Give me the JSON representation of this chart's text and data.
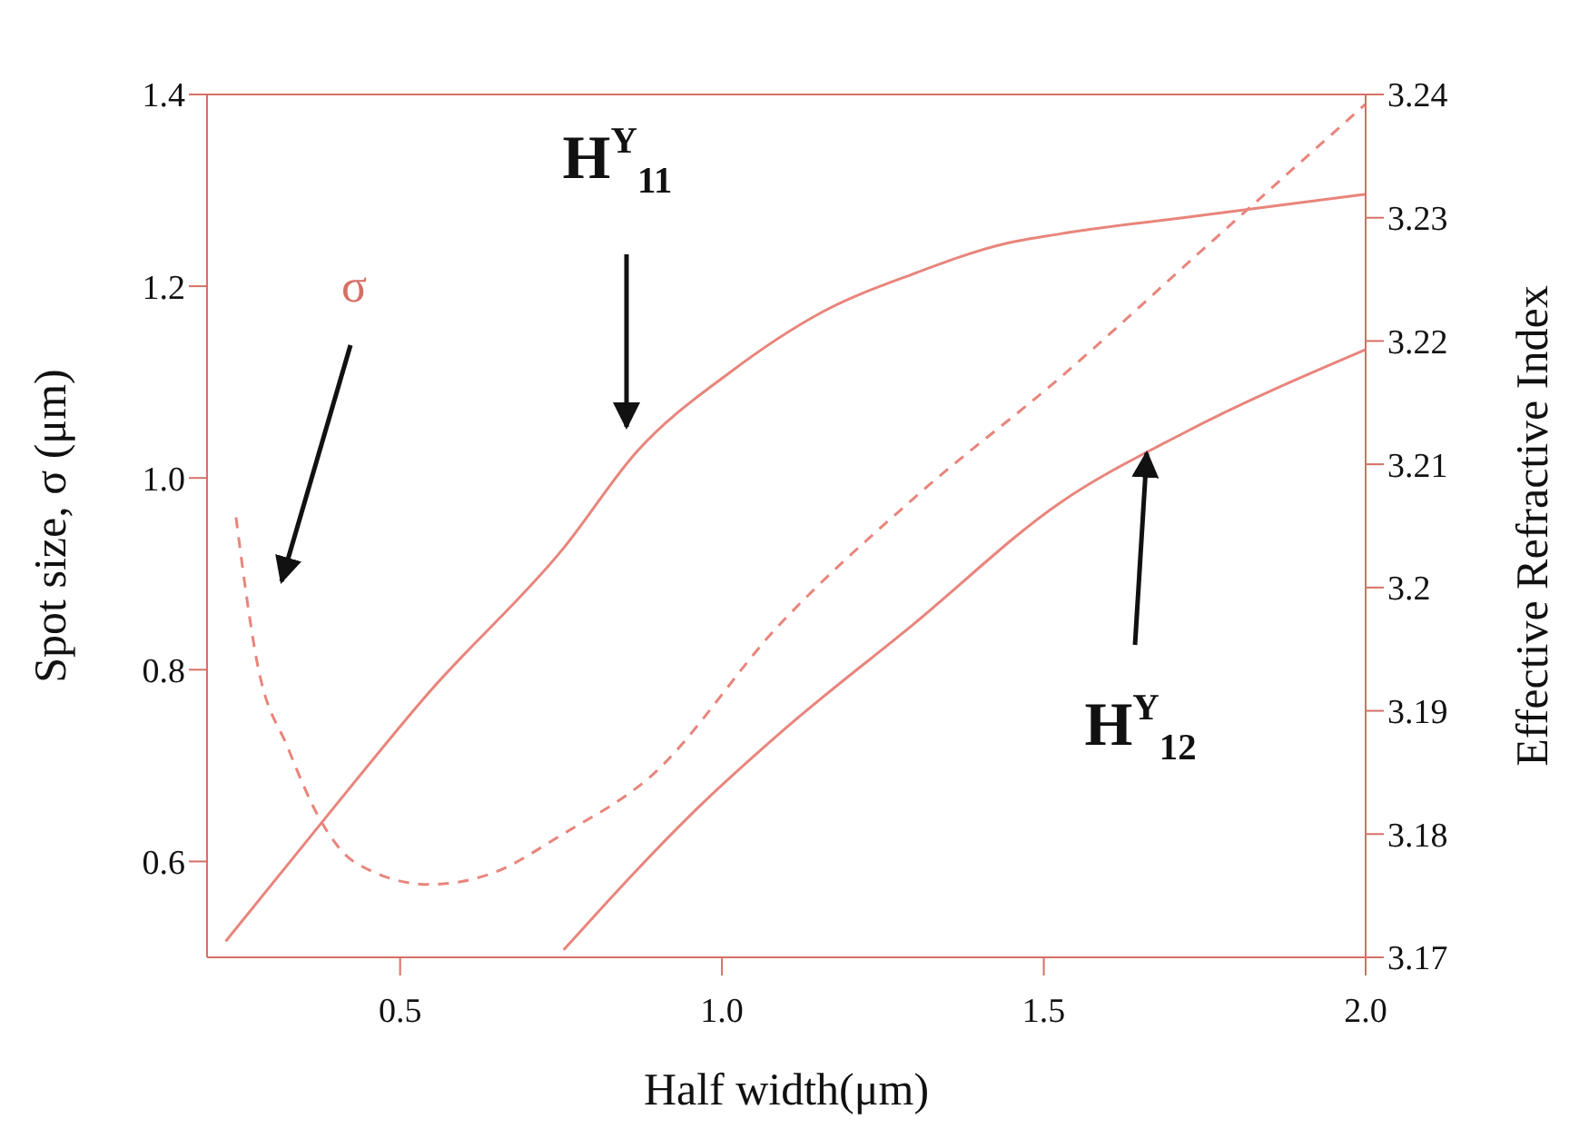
{
  "chart_data": {
    "type": "line",
    "xlabel": "Half width(μm)",
    "ylabel": "Spot size, σ (μm)",
    "y2label": "Effective Refractive Index",
    "xlim": [
      0.2,
      2.0
    ],
    "xticks": [
      0.5,
      {
        "value": 1,
        "label": "1.0"
      },
      1.5,
      {
        "value": 2,
        "label": "2.0"
      }
    ],
    "ylim": [
      0.5,
      1.4
    ],
    "yticks": [
      0.6,
      0.8,
      {
        "value": 1,
        "label": "1.0"
      },
      1.2,
      1.4
    ],
    "y2lim": [
      3.17,
      3.24
    ],
    "y2ticks": [
      3.17,
      3.18,
      3.19,
      3.2,
      3.21,
      3.22,
      3.23,
      3.24
    ],
    "grid": false,
    "marker": "none",
    "series": [
      {
        "color": "#e8857c",
        "line_style": "dashed",
        "x": [
          0.245,
          0.278,
          0.326,
          0.378,
          0.43,
          0.545,
          0.64,
          0.754,
          0.888,
          1.088,
          1.3,
          1.526,
          1.75,
          2.0
        ],
        "values": [
          0.959,
          0.807,
          0.718,
          0.641,
          0.599,
          0.576,
          0.587,
          0.629,
          0.688,
          0.846,
          0.98,
          1.105,
          1.24,
          1.39
        ]
      },
      {
        "color": "#e8857c",
        "line_style": "solid",
        "axis": "y2",
        "x": [
          0.229,
          0.373,
          0.545,
          0.754,
          0.869,
          1.011,
          1.154,
          1.3,
          1.44,
          1.526,
          1.716,
          2.0
        ],
        "values": [
          3.1713,
          3.1806,
          3.1915,
          3.2032,
          3.2111,
          3.2174,
          3.2223,
          3.2255,
          3.2279,
          3.2287,
          3.23,
          3.2319
        ]
      },
      {
        "color": "#e8857c",
        "line_style": "solid",
        "axis": "y2",
        "x": [
          0.754,
          0.964,
          1.097,
          1.297,
          1.526,
          1.716,
          2.0
        ],
        "values": [
          3.1706,
          3.1822,
          3.1885,
          3.197,
          3.2069,
          3.2125,
          3.2193
        ]
      }
    ],
    "annotations": [
      "σ",
      "H$^{Y}$$_{11}$",
      {
        "text": "H$^{Y}$$_{12}$",
        "x": 1.66,
        "y": 1.026
      }
    ]
  }
}
